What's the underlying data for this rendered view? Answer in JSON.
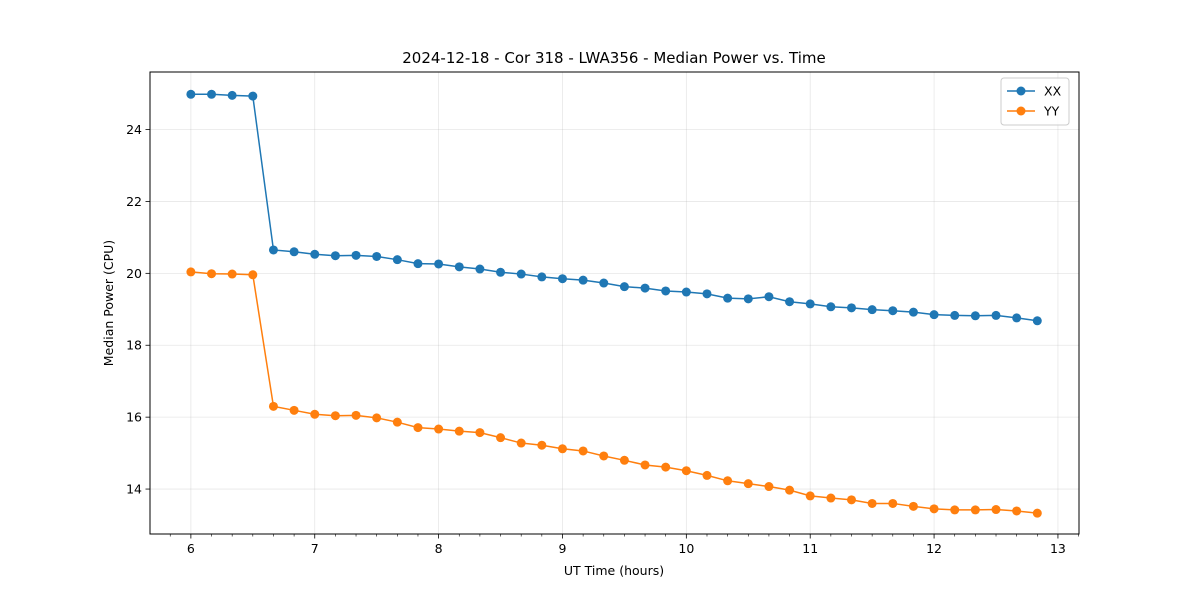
{
  "chart_data": {
    "type": "line",
    "title": "2024-12-18 - Cor 318 - LWA356 - Median Power vs. Time",
    "xlabel": "UT Time (hours)",
    "ylabel": "Median Power (CPU)",
    "xlim": [
      5.67,
      13.17
    ],
    "ylim": [
      12.75,
      25.6
    ],
    "xticks": [
      6,
      7,
      8,
      9,
      10,
      11,
      12,
      13
    ],
    "xtick_labels": [
      "6",
      "7",
      "8",
      "9",
      "10",
      "11",
      "12",
      "13"
    ],
    "yticks": [
      14,
      16,
      18,
      20,
      22,
      24
    ],
    "ytick_labels": [
      "14",
      "16",
      "18",
      "20",
      "22",
      "24"
    ],
    "grid": true,
    "legend_position": "top-right",
    "x": [
      6.0,
      6.1667,
      6.3333,
      6.5,
      6.6667,
      6.8333,
      7.0,
      7.1667,
      7.3333,
      7.5,
      7.6667,
      7.8333,
      8.0,
      8.1667,
      8.3333,
      8.5,
      8.6667,
      8.8333,
      9.0,
      9.1667,
      9.3333,
      9.5,
      9.6667,
      9.8333,
      10.0,
      10.1667,
      10.3333,
      10.5,
      10.6667,
      10.8333,
      11.0,
      11.1667,
      11.3333,
      11.5,
      11.6667,
      11.8333,
      12.0,
      12.1667,
      12.3333,
      12.5,
      12.6667,
      12.8333
    ],
    "series": [
      {
        "name": "XX",
        "color": "#1f77b4",
        "values": [
          24.98,
          24.98,
          24.95,
          24.93,
          20.65,
          20.6,
          20.53,
          20.49,
          20.5,
          20.47,
          20.38,
          20.27,
          20.26,
          20.18,
          20.12,
          20.03,
          19.98,
          19.9,
          19.85,
          19.81,
          19.73,
          19.63,
          19.59,
          19.51,
          19.48,
          19.43,
          19.31,
          19.29,
          19.35,
          19.21,
          19.15,
          19.07,
          19.04,
          18.99,
          18.96,
          18.92,
          18.85,
          18.83,
          18.82,
          18.83,
          18.76,
          18.68
        ]
      },
      {
        "name": "YY",
        "color": "#ff7f0e",
        "values": [
          20.04,
          19.99,
          19.98,
          19.96,
          16.3,
          16.19,
          16.08,
          16.04,
          16.05,
          15.98,
          15.86,
          15.71,
          15.67,
          15.61,
          15.57,
          15.43,
          15.28,
          15.22,
          15.12,
          15.06,
          14.92,
          14.8,
          14.67,
          14.61,
          14.51,
          14.38,
          14.23,
          14.15,
          14.07,
          13.97,
          13.81,
          13.75,
          13.7,
          13.6,
          13.6,
          13.52,
          13.45,
          13.42,
          13.42,
          13.43,
          13.39,
          13.33
        ]
      }
    ]
  }
}
